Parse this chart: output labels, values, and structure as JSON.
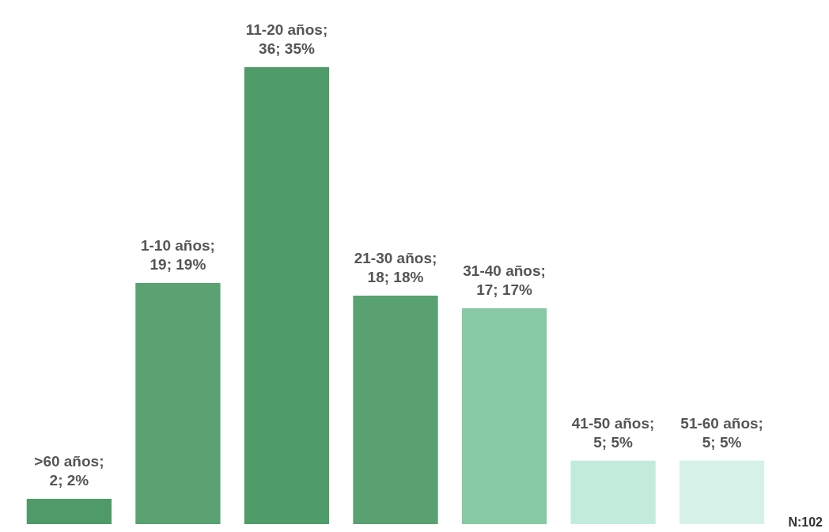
{
  "chart_data": {
    "type": "bar",
    "categories": [
      null,
      null,
      null,
      null,
      null,
      null,
      null
    ],
    "values": [
      2,
      19,
      36,
      18,
      17,
      5,
      5
    ],
    "colors": [
      "#4f9a68",
      "#5aa271",
      "#4f9b69",
      "#5aa171",
      "#86c9a3",
      "#c3ebdb",
      "#d6f2e8"
    ],
    "value_labels": [
      ">60 años; 2; 2%",
      "1-10 años; 19; 19%",
      "11-20 años; 36; 35%",
      "21-30 años; 18; 18%",
      "31-40 años; 17; 17%",
      "41-50 años; 5; 5%",
      "51-60 años; 5; 5%"
    ],
    "annotations": [
      "N:102"
    ]
  }
}
